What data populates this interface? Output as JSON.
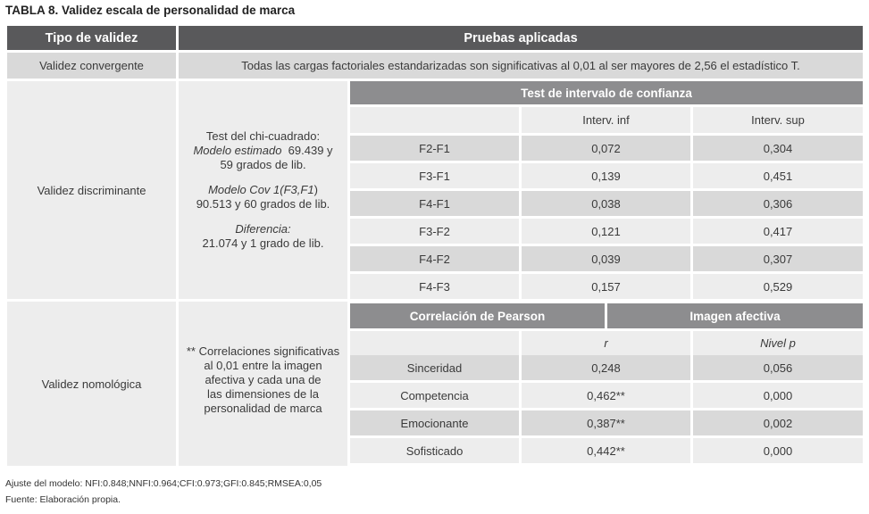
{
  "title": "TABLA 8. Validez escala de personalidad de marca",
  "header": {
    "col1": "Tipo de validez",
    "col2": "Pruebas aplicadas"
  },
  "convergente": {
    "label": "Validez convergente",
    "text": "Todas las cargas factoriales estandarizadas son significativas al 0,01 al ser mayores de 2,56 el estadístico T."
  },
  "discriminante": {
    "label": "Validez discriminante",
    "desc": {
      "line1": "Test del chi-cuadrado:",
      "line2_italic": "Modelo estimado",
      "line2_rest": "  69.439 y",
      "line3": "59 grados de lib.",
      "line4_a": "Modelo Cov 1(",
      "line4_b": "F3,F1",
      "line4_c": ")",
      "line5": "90.513 y 60 grados de lib.",
      "line6_italic": "Diferencia:",
      "line7": "21.074 y 1 grado de lib."
    },
    "subheader": "Test de intervalo de confianza",
    "col_inf": "Interv. inf",
    "col_sup": "Interv. sup",
    "rows": [
      {
        "pair": "F2-F1",
        "inf": "0,072",
        "sup": "0,304"
      },
      {
        "pair": "F3-F1",
        "inf": "0,139",
        "sup": "0,451"
      },
      {
        "pair": "F4-F1",
        "inf": "0,038",
        "sup": "0,306"
      },
      {
        "pair": "F3-F2",
        "inf": "0,121",
        "sup": "0,417"
      },
      {
        "pair": "F4-F2",
        "inf": "0,039",
        "sup": "0,307"
      },
      {
        "pair": "F4-F3",
        "inf": "0,157",
        "sup": "0,529"
      }
    ]
  },
  "nomologica": {
    "label": "Validez nomológica",
    "desc": {
      "line1": "** Correlaciones significativas",
      "line2": "al 0,01 entre la imagen",
      "line3": "afectiva y cada una de",
      "line4": "las dimensiones de la",
      "line5": "personalidad de marca"
    },
    "subheader_left": "Correlación de Pearson",
    "subheader_right": "Imagen afectiva",
    "col_r": "r",
    "col_p": "Nivel p",
    "rows": [
      {
        "dim": "Sinceridad",
        "r": "0,248",
        "p": "0,056"
      },
      {
        "dim": "Competencia",
        "r": "0,462**",
        "p": "0,000"
      },
      {
        "dim": "Emocionante",
        "r": "0,387**",
        "p": "0,002"
      },
      {
        "dim": "Sofisticado",
        "r": "0,442**",
        "p": "0,000"
      }
    ]
  },
  "footnotes": {
    "fit": "Ajuste del modelo: NFI:0.848;NNFI:0.964;CFI:0.973;GFI:0.845;RMSEA:0,05",
    "source": "Fuente: Elaboración propia."
  }
}
